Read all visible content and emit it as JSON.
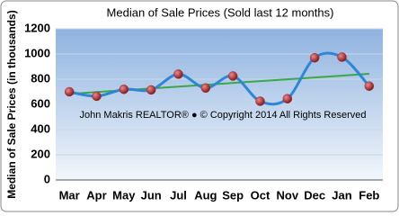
{
  "chart_data": {
    "type": "line",
    "title": "Median of Sale Prices (Sold last 12 months)",
    "y_label": "Median of Sale Prices (in thousands)",
    "annotation": "John Makris REALTOR®  ●  © Copyright 2014 All Rights Reserved",
    "categories": [
      "Mar",
      "Apr",
      "May",
      "Jun",
      "Jul",
      "Aug",
      "Sep",
      "Oct",
      "Nov",
      "Dec",
      "Jan",
      "Feb"
    ],
    "values": [
      700,
      665,
      720,
      715,
      840,
      730,
      825,
      625,
      645,
      970,
      975,
      745
    ],
    "color": "#2e86d6",
    "marker_color": "#a3262a",
    "trend_color": "#3aa845",
    "ylim": [
      0,
      1200
    ],
    "yticks": [
      0,
      200,
      400,
      600,
      800,
      1000,
      1200
    ],
    "grid": true
  }
}
